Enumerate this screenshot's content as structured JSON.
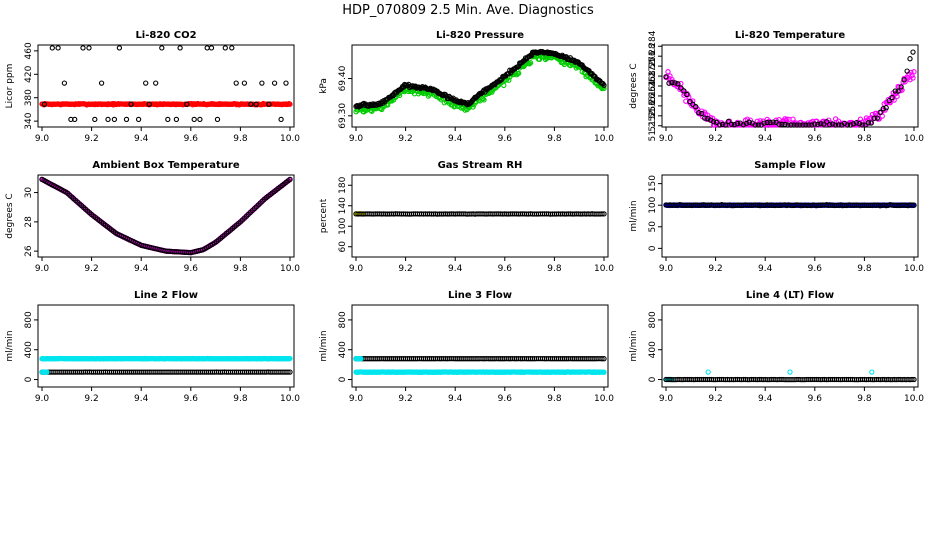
{
  "figure_title": "HDP_070809  2.5 Min. Ave. Diagnostics",
  "chart_data": [
    {
      "type": "scatter",
      "title": "Li-820 CO2",
      "ylabel": "Licor ppm",
      "xlim": [
        9.0,
        10.0
      ],
      "ylim": [
        330,
        470
      ],
      "xticks": [
        "9.0",
        "9.2",
        "9.4",
        "9.6",
        "9.8",
        "10.0"
      ],
      "yticks": [
        "340",
        "380",
        "420",
        "460"
      ],
      "series": [
        {
          "name": "red",
          "color": "#ff0000",
          "pattern": "flat",
          "base": 369,
          "noise": 1.5
        },
        {
          "name": "black",
          "color": "#000000",
          "pattern": "scatter_levels",
          "levels": [
            465,
            405,
            369,
            343
          ]
        }
      ]
    },
    {
      "type": "scatter",
      "title": "Li-820 Pressure",
      "ylabel": "kPa",
      "xlim": [
        9.0,
        10.0
      ],
      "ylim": [
        69.27,
        69.49
      ],
      "xticks": [
        "9.0",
        "9.2",
        "9.4",
        "9.6",
        "9.8",
        "10.0"
      ],
      "yticks": [
        "69.30",
        "69.40"
      ],
      "series": [
        {
          "name": "green",
          "color": "#00cc00",
          "pattern": "curve",
          "noise": 0.012,
          "curve_x": [
            9.0,
            9.1,
            9.2,
            9.3,
            9.4,
            9.45,
            9.55,
            9.65,
            9.72,
            9.8,
            9.9,
            10.0
          ],
          "curve_y": [
            69.315,
            69.32,
            69.37,
            69.36,
            69.33,
            69.32,
            69.37,
            69.42,
            69.46,
            69.455,
            69.43,
            69.37
          ]
        },
        {
          "name": "black",
          "color": "#000000",
          "pattern": "curve",
          "noise": 0.006,
          "offset": 0.012,
          "curve_x": [
            9.0,
            9.1,
            9.2,
            9.3,
            9.4,
            9.45,
            9.55,
            9.65,
            9.72,
            9.8,
            9.9,
            10.0
          ],
          "curve_y": [
            69.315,
            69.32,
            69.37,
            69.36,
            69.33,
            69.32,
            69.37,
            69.42,
            69.46,
            69.455,
            69.43,
            69.37
          ]
        }
      ]
    },
    {
      "type": "scatter",
      "title": "Li-820 Temperature",
      "ylabel": "degrees C",
      "xlim": [
        9.0,
        10.0
      ],
      "ylim": [
        51.2515,
        51.2845
      ],
      "xticks": [
        "9.0",
        "9.2",
        "9.4",
        "9.6",
        "9.8",
        "10.0"
      ],
      "yticks": [
        "51.252",
        "51.256",
        "51.26",
        "51.264",
        "51.268",
        "51.272",
        "51.276",
        "51.28",
        "51.284"
      ],
      "series": [
        {
          "name": "magenta",
          "color": "#ff00ff",
          "pattern": "curve",
          "noise": 0.0035,
          "curve_x": [
            9.0,
            9.05,
            9.1,
            9.15,
            9.2,
            9.25,
            9.8,
            9.85,
            9.9,
            9.95,
            10.0
          ],
          "curve_y": [
            51.272,
            51.268,
            51.262,
            51.256,
            51.2525,
            51.2525,
            51.2525,
            51.256,
            51.262,
            51.268,
            51.274
          ]
        },
        {
          "name": "black",
          "color": "#000000",
          "pattern": "curve",
          "noise": 0.0025,
          "sparse": 3,
          "curve_x": [
            9.0,
            9.05,
            9.1,
            9.15,
            9.2,
            9.25,
            9.8,
            9.85,
            9.9,
            9.95,
            10.0
          ],
          "curve_y": [
            51.272,
            51.268,
            51.262,
            51.256,
            51.2525,
            51.2525,
            51.2525,
            51.256,
            51.262,
            51.268,
            51.282
          ]
        }
      ]
    },
    {
      "type": "scatter",
      "title": "Ambient Box Temperature",
      "ylabel": "degrees C",
      "xlim": [
        9.0,
        10.0
      ],
      "ylim": [
        25.6,
        31.2
      ],
      "xticks": [
        "9.0",
        "9.2",
        "9.4",
        "9.6",
        "9.8",
        "10.0"
      ],
      "yticks": [
        "26",
        "28",
        "30"
      ],
      "series": [
        {
          "name": "magenta",
          "color": "#ff00ff",
          "pattern": "curve",
          "noise": 0,
          "curve_x": [
            9.0,
            9.1,
            9.2,
            9.3,
            9.4,
            9.5,
            9.6,
            9.65,
            9.7,
            9.8,
            9.9,
            10.0
          ],
          "curve_y": [
            30.9,
            30.0,
            28.5,
            27.2,
            26.4,
            26.0,
            25.9,
            26.1,
            26.6,
            28.0,
            29.6,
            30.9
          ]
        },
        {
          "name": "black",
          "color": "#000000",
          "pattern": "curve",
          "noise": 0,
          "sparse": 2,
          "curve_x": [
            9.0,
            9.1,
            9.2,
            9.3,
            9.4,
            9.5,
            9.6,
            9.65,
            9.7,
            9.8,
            9.9,
            10.0
          ],
          "curve_y": [
            30.9,
            30.0,
            28.5,
            27.2,
            26.4,
            26.0,
            25.9,
            26.1,
            26.6,
            28.0,
            29.6,
            30.9
          ]
        }
      ]
    },
    {
      "type": "scatter",
      "title": "Gas Stream RH",
      "ylabel": "percent",
      "xlim": [
        9.0,
        10.0
      ],
      "ylim": [
        40,
        200
      ],
      "xticks": [
        "9.0",
        "9.2",
        "9.4",
        "9.6",
        "9.8",
        "10.0"
      ],
      "yticks": [
        "60",
        "100",
        "140",
        "180"
      ],
      "series": [
        {
          "name": "yellow",
          "color": "#e6e600",
          "pattern": "flat",
          "base": 124,
          "noise": 0,
          "xmax": 9.03
        },
        {
          "name": "black",
          "color": "#000000",
          "pattern": "flat",
          "base": 124,
          "noise": 0.3,
          "sparse": 2
        }
      ]
    },
    {
      "type": "scatter",
      "title": "Sample Flow",
      "ylabel": "ml/min",
      "xlim": [
        9.0,
        10.0
      ],
      "ylim": [
        -20,
        170
      ],
      "xticks": [
        "9.0",
        "9.2",
        "9.4",
        "9.6",
        "9.8",
        "10.0"
      ],
      "yticks": [
        "0",
        "50",
        "100",
        "150"
      ],
      "series": [
        {
          "name": "blue",
          "color": "#0000ff",
          "pattern": "flat",
          "base": 100,
          "noise": 1.2
        },
        {
          "name": "black",
          "color": "#000000",
          "pattern": "flat",
          "base": 100,
          "noise": 1.5,
          "sparse": 2
        }
      ]
    },
    {
      "type": "scatter",
      "title": "Line 2 Flow",
      "ylabel": "ml/min",
      "xlim": [
        9.0,
        10.0
      ],
      "ylim": [
        -100,
        1000
      ],
      "xticks": [
        "9.0",
        "9.2",
        "9.4",
        "9.6",
        "9.8",
        "10.0"
      ],
      "yticks": [
        "0",
        "400",
        "800"
      ],
      "series": [
        {
          "name": "cyan",
          "color": "#00e5ee",
          "pattern": "flat",
          "base": 280,
          "noise": 4
        },
        {
          "name": "black",
          "color": "#000000",
          "pattern": "flat",
          "base": 100,
          "noise": 1,
          "sparse": 2
        },
        {
          "name": "cyan-low",
          "color": "#00e5ee",
          "pattern": "flat",
          "base": 100,
          "noise": 0,
          "xmax": 9.02
        }
      ]
    },
    {
      "type": "scatter",
      "title": "Line 3 Flow",
      "ylabel": "ml/min",
      "xlim": [
        9.0,
        10.0
      ],
      "ylim": [
        -100,
        1000
      ],
      "xticks": [
        "9.0",
        "9.2",
        "9.4",
        "9.6",
        "9.8",
        "10.0"
      ],
      "yticks": [
        "0",
        "400",
        "800"
      ],
      "series": [
        {
          "name": "cyan",
          "color": "#00e5ee",
          "pattern": "flat",
          "base": 100,
          "noise": 4
        },
        {
          "name": "black",
          "color": "#000000",
          "pattern": "flat",
          "base": 280,
          "noise": 1,
          "sparse": 2
        },
        {
          "name": "cyan-high",
          "color": "#00e5ee",
          "pattern": "flat",
          "base": 280,
          "noise": 0,
          "xmax": 9.02
        }
      ]
    },
    {
      "type": "scatter",
      "title": "Line 4 (LT) Flow",
      "ylabel": "ml/min",
      "xlim": [
        9.0,
        10.0
      ],
      "ylim": [
        -100,
        1000
      ],
      "xticks": [
        "9.0",
        "9.2",
        "9.4",
        "9.6",
        "9.8",
        "10.0"
      ],
      "yticks": [
        "0",
        "400",
        "800"
      ],
      "series": [
        {
          "name": "cyan",
          "color": "#00e5ee",
          "pattern": "flat",
          "base": 0,
          "noise": 0,
          "xmax": 9.02
        },
        {
          "name": "cyan-spikes",
          "color": "#00e5ee",
          "pattern": "points",
          "px": [
            9.17,
            9.5,
            9.83
          ],
          "py": [
            100,
            100,
            100
          ]
        },
        {
          "name": "black",
          "color": "#000000",
          "pattern": "flat",
          "base": 0,
          "noise": 0.5,
          "sparse": 2
        }
      ]
    }
  ]
}
